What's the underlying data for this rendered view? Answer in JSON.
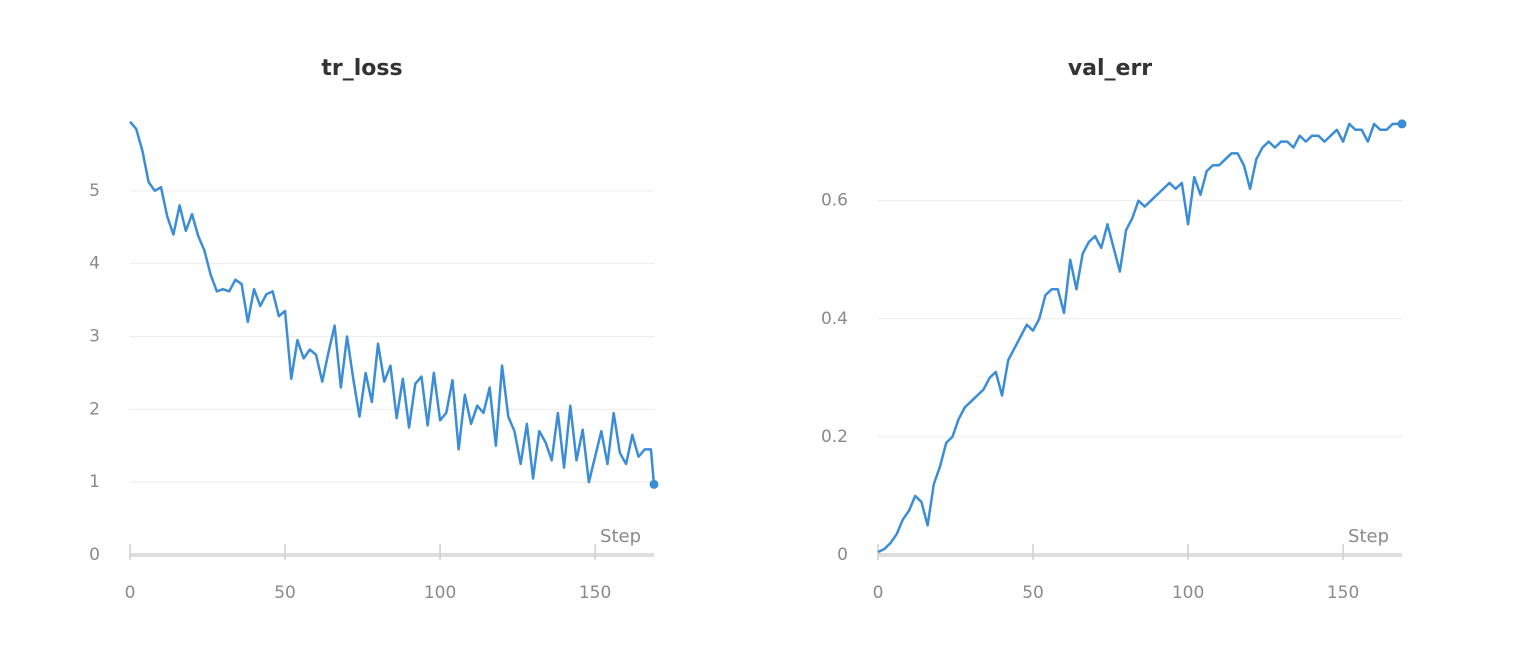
{
  "chart_data": [
    {
      "type": "line",
      "title": "tr_loss",
      "x_label": "Step",
      "x": [
        0,
        2,
        4,
        6,
        8,
        10,
        12,
        14,
        16,
        18,
        20,
        22,
        24,
        26,
        28,
        30,
        32,
        34,
        36,
        38,
        40,
        42,
        44,
        46,
        48,
        50,
        52,
        54,
        56,
        58,
        60,
        62,
        64,
        66,
        68,
        70,
        72,
        74,
        76,
        78,
        80,
        82,
        84,
        86,
        88,
        90,
        92,
        94,
        96,
        98,
        100,
        102,
        104,
        106,
        108,
        110,
        112,
        114,
        116,
        118,
        120,
        122,
        124,
        126,
        128,
        130,
        132,
        134,
        136,
        138,
        140,
        142,
        144,
        146,
        148,
        150,
        152,
        154,
        156,
        158,
        160,
        162,
        164,
        166,
        168,
        169
      ],
      "series": [
        {
          "name": "tr_loss",
          "color": "#3a8dd6",
          "values": [
            5.95,
            5.85,
            5.55,
            5.12,
            5.0,
            5.05,
            4.65,
            4.4,
            4.8,
            4.45,
            4.68,
            4.38,
            4.18,
            3.85,
            3.62,
            3.65,
            3.62,
            3.78,
            3.72,
            3.2,
            3.65,
            3.42,
            3.58,
            3.62,
            3.28,
            3.35,
            2.42,
            2.95,
            2.7,
            2.82,
            2.75,
            2.38,
            2.78,
            3.15,
            2.3,
            3.0,
            2.42,
            1.9,
            2.5,
            2.1,
            2.9,
            2.38,
            2.6,
            1.88,
            2.42,
            1.75,
            2.35,
            2.45,
            1.78,
            2.5,
            1.85,
            1.95,
            2.4,
            1.45,
            2.2,
            1.8,
            2.05,
            1.95,
            2.3,
            1.5,
            2.6,
            1.9,
            1.7,
            1.25,
            1.8,
            1.05,
            1.7,
            1.55,
            1.3,
            1.95,
            1.2,
            2.05,
            1.3,
            1.72,
            1.0,
            1.35,
            1.7,
            1.25,
            1.95,
            1.4,
            1.25,
            1.65,
            1.35,
            1.45,
            1.45,
            0.97
          ]
        }
      ],
      "xlim": [
        0,
        169
      ],
      "xticks": [
        0,
        50,
        100,
        150
      ],
      "ylim": [
        0,
        6
      ],
      "yticks": [
        0,
        1,
        2,
        3,
        4,
        5
      ],
      "grid": true
    },
    {
      "type": "line",
      "title": "val_err",
      "x_label": "Step",
      "x": [
        0,
        2,
        4,
        6,
        8,
        10,
        12,
        14,
        16,
        18,
        20,
        22,
        24,
        26,
        28,
        30,
        32,
        34,
        36,
        38,
        40,
        42,
        44,
        46,
        48,
        50,
        52,
        54,
        56,
        58,
        60,
        62,
        64,
        66,
        68,
        70,
        72,
        74,
        76,
        78,
        80,
        82,
        84,
        86,
        88,
        90,
        92,
        94,
        96,
        98,
        100,
        102,
        104,
        106,
        108,
        110,
        112,
        114,
        116,
        118,
        120,
        122,
        124,
        126,
        128,
        130,
        132,
        134,
        136,
        138,
        140,
        142,
        144,
        146,
        148,
        150,
        152,
        154,
        156,
        158,
        160,
        162,
        164,
        166,
        168,
        169
      ],
      "series": [
        {
          "name": "val_err",
          "color": "#3a8dd6",
          "values": [
            0.005,
            0.01,
            0.02,
            0.035,
            0.06,
            0.075,
            0.1,
            0.09,
            0.05,
            0.12,
            0.15,
            0.19,
            0.2,
            0.23,
            0.25,
            0.26,
            0.27,
            0.28,
            0.3,
            0.31,
            0.27,
            0.33,
            0.35,
            0.37,
            0.39,
            0.38,
            0.4,
            0.44,
            0.45,
            0.45,
            0.41,
            0.5,
            0.45,
            0.51,
            0.53,
            0.54,
            0.52,
            0.56,
            0.52,
            0.48,
            0.55,
            0.57,
            0.6,
            0.59,
            0.6,
            0.61,
            0.62,
            0.63,
            0.62,
            0.63,
            0.56,
            0.64,
            0.61,
            0.65,
            0.66,
            0.66,
            0.67,
            0.68,
            0.68,
            0.66,
            0.62,
            0.67,
            0.69,
            0.7,
            0.69,
            0.7,
            0.7,
            0.69,
            0.71,
            0.7,
            0.71,
            0.71,
            0.7,
            0.71,
            0.72,
            0.7,
            0.73,
            0.72,
            0.72,
            0.7,
            0.73,
            0.72,
            0.72,
            0.73,
            0.73,
            0.73
          ]
        }
      ],
      "xlim": [
        0,
        169
      ],
      "xticks": [
        0,
        50,
        100,
        150
      ],
      "ylim": [
        0,
        0.74
      ],
      "yticks": [
        0,
        0.2,
        0.4,
        0.6
      ],
      "grid": true
    }
  ]
}
